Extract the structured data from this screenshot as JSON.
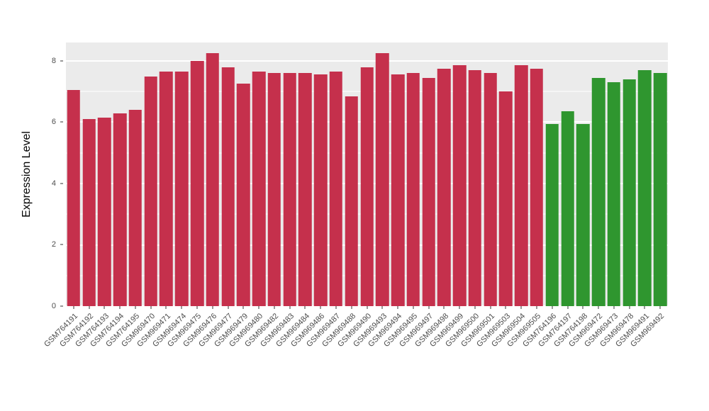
{
  "chart_data": {
    "type": "bar",
    "title": "",
    "xlabel": "",
    "ylabel": "Expression Level",
    "ylim": [
      0,
      8.6
    ],
    "y_ticks": [
      0,
      2,
      4,
      6,
      8
    ],
    "y_minor_ticks": [
      1,
      3,
      5,
      7
    ],
    "grid": true,
    "legend": "none",
    "panel_background": "#EBEBEB",
    "gridline_color": "#FFFFFF",
    "palette": {
      "red": "#C5304C",
      "green": "#2F962F"
    },
    "categories": [
      "GSM764191",
      "GSM764192",
      "GSM764193",
      "GSM764194",
      "GSM764195",
      "GSM969470",
      "GSM969471",
      "GSM969474",
      "GSM969475",
      "GSM969476",
      "GSM969477",
      "GSM969479",
      "GSM969480",
      "GSM969482",
      "GSM969483",
      "GSM969484",
      "GSM969486",
      "GSM969487",
      "GSM969488",
      "GSM969490",
      "GSM969493",
      "GSM969494",
      "GSM969495",
      "GSM969497",
      "GSM969498",
      "GSM969499",
      "GSM969500",
      "GSM969501",
      "GSM969503",
      "GSM969504",
      "GSM969505",
      "GSM764196",
      "GSM764197",
      "GSM764198",
      "GSM969472",
      "GSM969473",
      "GSM969478",
      "GSM969491",
      "GSM969492"
    ],
    "values": [
      7.05,
      6.1,
      6.15,
      6.3,
      6.4,
      7.5,
      7.65,
      7.65,
      8.0,
      8.25,
      7.8,
      7.25,
      7.65,
      7.6,
      7.6,
      7.6,
      7.55,
      7.65,
      6.85,
      7.8,
      8.25,
      7.55,
      7.6,
      7.45,
      7.75,
      7.85,
      7.7,
      7.6,
      7.0,
      7.85,
      7.75,
      5.95,
      6.35,
      5.95,
      7.45,
      7.3,
      7.4,
      7.7,
      7.6
    ],
    "groups": [
      "red",
      "red",
      "red",
      "red",
      "red",
      "red",
      "red",
      "red",
      "red",
      "red",
      "red",
      "red",
      "red",
      "red",
      "red",
      "red",
      "red",
      "red",
      "red",
      "red",
      "red",
      "red",
      "red",
      "red",
      "red",
      "red",
      "red",
      "red",
      "red",
      "red",
      "red",
      "green",
      "green",
      "green",
      "green",
      "green",
      "green",
      "green",
      "green"
    ]
  }
}
